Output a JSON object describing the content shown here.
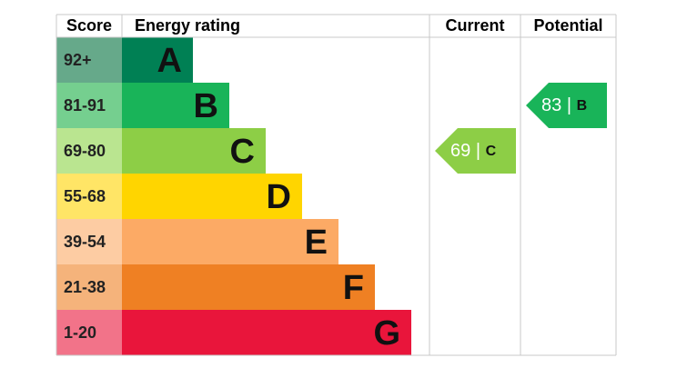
{
  "headers": {
    "score": "Score",
    "rating": "Energy rating",
    "current": "Current",
    "potential": "Potential"
  },
  "bands": [
    {
      "score": "92+",
      "letter": "A",
      "color": "#008054",
      "light": "#66a98a"
    },
    {
      "score": "81-91",
      "letter": "B",
      "color": "#19b459",
      "light": "#75cf8f"
    },
    {
      "score": "69-80",
      "letter": "C",
      "color": "#8dce46",
      "light": "#bae590"
    },
    {
      "score": "55-68",
      "letter": "D",
      "color": "#ffd500",
      "light": "#ffe566"
    },
    {
      "score": "39-54",
      "letter": "E",
      "color": "#fcaa65",
      "light": "#fdcca3"
    },
    {
      "score": "21-38",
      "letter": "F",
      "color": "#ef8023",
      "light": "#f5b37b"
    },
    {
      "score": "1-20",
      "letter": "G",
      "color": "#e9153b",
      "light": "#f27389"
    }
  ],
  "current": {
    "value": 69,
    "letter": "C",
    "band": 2
  },
  "potential": {
    "value": 83,
    "letter": "B",
    "band": 1
  },
  "separator": "|"
}
